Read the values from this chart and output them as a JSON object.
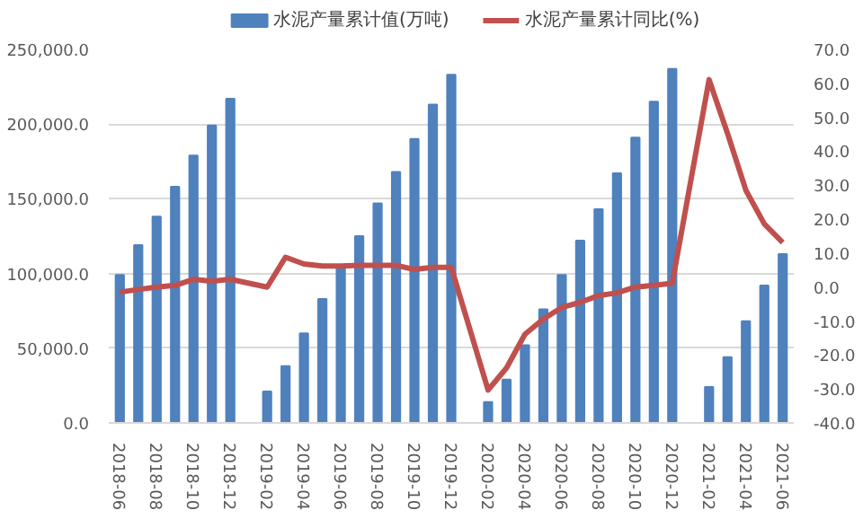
{
  "chart_data": {
    "type": "bar",
    "categories": [
      "2018-06",
      null,
      "2018-08",
      null,
      "2018-10",
      null,
      "2018-12",
      null,
      "2019-02",
      null,
      "2019-04",
      null,
      "2019-06",
      null,
      "2019-08",
      null,
      "2019-10",
      null,
      "2019-12",
      null,
      "2020-02",
      null,
      "2020-04",
      null,
      "2020-06",
      null,
      "2020-08",
      null,
      "2020-10",
      null,
      "2020-12",
      null,
      "2021-02",
      null,
      "2021-04",
      null,
      "2021-06"
    ],
    "series": [
      {
        "name": "水泥产量累计值(万吨)",
        "color": "#4f81bd",
        "values": [
          99000,
          119000,
          138000,
          158000,
          179000,
          199000,
          217000,
          null,
          21000,
          38000,
          60000,
          83000,
          104000,
          125000,
          147000,
          168000,
          190000,
          213000,
          233000,
          null,
          14000,
          29000,
          52000,
          76000,
          99000,
          122000,
          143000,
          167000,
          191000,
          215000,
          237000,
          null,
          24000,
          44000,
          68000,
          92000,
          113000
        ]
      },
      {
        "name": "水泥产量累计同比(%)",
        "color": "#c0504d",
        "type": "line",
        "axis": "y2",
        "values": [
          -1.5,
          -0.7,
          0,
          0.5,
          2.3,
          1.7,
          2.3,
          null,
          0,
          8.8,
          6.8,
          6.2,
          6.2,
          6.4,
          6.4,
          6.4,
          5.2,
          5.8,
          5.8,
          null,
          -30.3,
          -23.8,
          -13.9,
          -9.4,
          -6,
          -4.5,
          -2.5,
          -1.7,
          0,
          0.5,
          1.1,
          null,
          61.1,
          45.3,
          28.5,
          18.6,
          13.1
        ]
      }
    ],
    "ylim": [
      0,
      250000
    ],
    "yticks": [
      {
        "value": 0,
        "label": "0.0"
      },
      {
        "value": 50000,
        "label": "50,000.0"
      },
      {
        "value": 100000,
        "label": "100,000.0"
      },
      {
        "value": 150000,
        "label": "150,000.0"
      },
      {
        "value": 200000,
        "label": "200,000.0"
      },
      {
        "value": 250000,
        "label": "250,000.0"
      }
    ],
    "y2lim": [
      -40,
      70
    ],
    "y2ticks": [
      {
        "value": -40,
        "label": "-40.0"
      },
      {
        "value": -30,
        "label": "-30.0"
      },
      {
        "value": -20,
        "label": "-20.0"
      },
      {
        "value": -10,
        "label": "-10.0"
      },
      {
        "value": 0,
        "label": "0.0"
      },
      {
        "value": 10,
        "label": "10.0"
      },
      {
        "value": 20,
        "label": "20.0"
      },
      {
        "value": 30,
        "label": "30.0"
      },
      {
        "value": 40,
        "label": "40.0"
      },
      {
        "value": 50,
        "label": "50.0"
      },
      {
        "value": 60,
        "label": "60.0"
      },
      {
        "value": 70,
        "label": "70.0"
      }
    ],
    "grid": "y",
    "legend": "top",
    "marker": "none",
    "line_style": "solid"
  }
}
